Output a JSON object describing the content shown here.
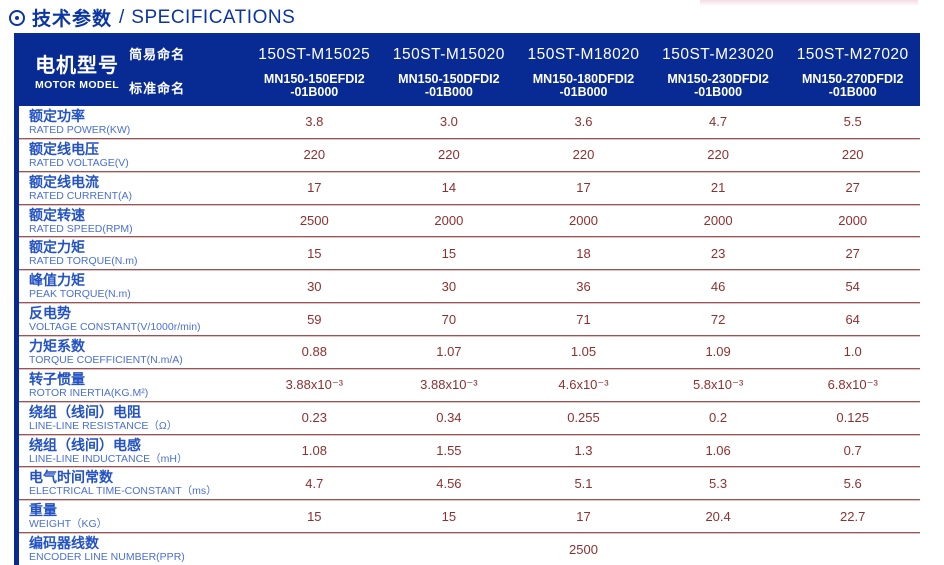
{
  "title": {
    "icon": "circle-dot-icon",
    "zh": "技术参数",
    "sep": "/",
    "en": "SPECIFICATIONS"
  },
  "colors": {
    "header_navy": "#082b93",
    "title_blue": "#0a35a3",
    "label_blue": "#2352c5",
    "label_blue_light": "#4a6fd6",
    "value_maroon": "#8d3030",
    "divider_maroon": "#9a5453"
  },
  "table": {
    "model_zh": "电机型号",
    "model_en": "MOTOR MODEL",
    "simple_label": "简易命名",
    "standard_label": "标准命名",
    "columns": [
      {
        "simple": "150ST-M15025",
        "standard_line1": "MN150-150EFDI2",
        "standard_line2": "-01B000"
      },
      {
        "simple": "150ST-M15020",
        "standard_line1": "MN150-150DFDI2",
        "standard_line2": "-01B000"
      },
      {
        "simple": "150ST-M18020",
        "standard_line1": "MN150-180DFDI2",
        "standard_line2": "-01B000"
      },
      {
        "simple": "150ST-M23020",
        "standard_line1": "MN150-230DFDI2",
        "standard_line2": "-01B000"
      },
      {
        "simple": "150ST-M27020",
        "standard_line1": "MN150-270DFDI2",
        "standard_line2": "-01B000"
      }
    ],
    "rows": [
      {
        "zh": "额定功率",
        "en": "RATED POWER(KW)",
        "values": [
          "3.8",
          "3.0",
          "3.6",
          "4.7",
          "5.5"
        ]
      },
      {
        "zh": "额定线电压",
        "en": "RATED VOLTAGE(V)",
        "values": [
          "220",
          "220",
          "220",
          "220",
          "220"
        ]
      },
      {
        "zh": "额定线电流",
        "en": "RATED CURRENT(A)",
        "values": [
          "17",
          "14",
          "17",
          "21",
          "27"
        ]
      },
      {
        "zh": "额定转速",
        "en": "RATED SPEED(RPM)",
        "values": [
          "2500",
          "2000",
          "2000",
          "2000",
          "2000"
        ]
      },
      {
        "zh": "额定力矩",
        "en": "RATED TORQUE(N.m)",
        "values": [
          "15",
          "15",
          "18",
          "23",
          "27"
        ]
      },
      {
        "zh": "峰值力矩",
        "en": "PEAK TORQUE(N.m)",
        "values": [
          "30",
          "30",
          "36",
          "46",
          "54"
        ]
      },
      {
        "zh": "反电势",
        "en": "VOLTAGE CONSTANT(V/1000r/min)",
        "values": [
          "59",
          "70",
          "71",
          "72",
          "64"
        ]
      },
      {
        "zh": "力矩系数",
        "en": "TORQUE COEFFICIENT(N.m/A)",
        "values": [
          "0.88",
          "1.07",
          "1.05",
          "1.09",
          "1.0"
        ]
      },
      {
        "zh": "转子惯量",
        "en": "ROTOR INERTIA(KG.M²)",
        "values": [
          "3.88x10⁻³",
          "3.88x10⁻³",
          "4.6x10⁻³",
          "5.8x10⁻³",
          "6.8x10⁻³"
        ]
      },
      {
        "zh": "绕组（线间）电阻",
        "en": "LINE-LINE RESISTANCE（Ω）",
        "values": [
          "0.23",
          "0.34",
          "0.255",
          "0.2",
          "0.125"
        ]
      },
      {
        "zh": "绕组（线间）电感",
        "en": "LINE-LINE INDUCTANCE（mH）",
        "values": [
          "1.08",
          "1.55",
          "1.3",
          "1.06",
          "0.7"
        ]
      },
      {
        "zh": "电气时间常数",
        "en": "ELECTRICAL TIME-CONSTANT（ms）",
        "values": [
          "4.7",
          "4.56",
          "5.1",
          "5.3",
          "5.6"
        ]
      },
      {
        "zh": "重量",
        "en": "WEIGHT（KG）",
        "values": [
          "15",
          "15",
          "17",
          "20.4",
          "22.7"
        ]
      },
      {
        "zh": "编码器线数",
        "en": "ENCODER LINE NUMBER(PPR)",
        "span_value": "2500"
      }
    ]
  }
}
